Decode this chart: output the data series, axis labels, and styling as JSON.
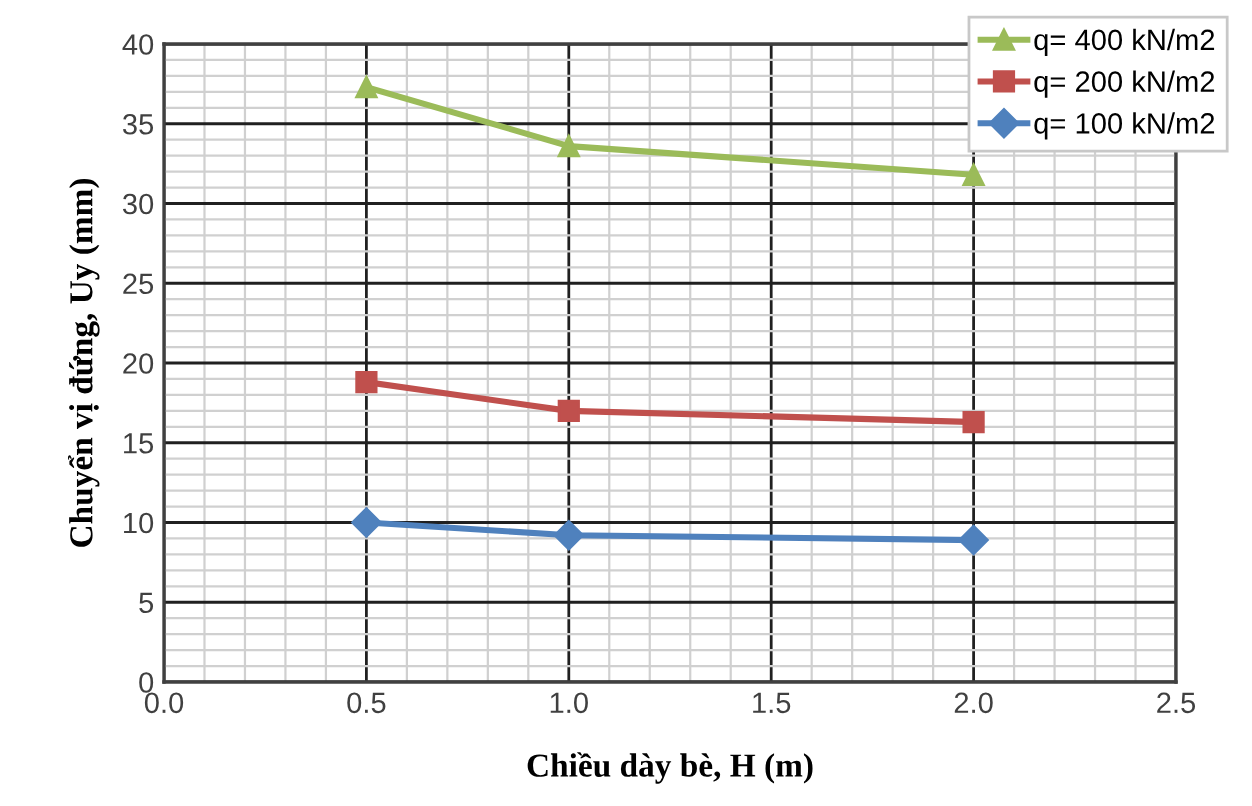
{
  "chart_data": {
    "type": "line",
    "xlabel": "Chiều dày bè, H (m)",
    "ylabel": "Chuyển vị đứng, Uy (mm)",
    "x": [
      0.5,
      1.0,
      2.0
    ],
    "series": [
      {
        "name": "q= 400 kN/m2",
        "color": "#9bbb59",
        "marker": "triangle",
        "values": [
          37.3,
          33.6,
          31.8
        ]
      },
      {
        "name": "q= 200 kN/m2",
        "color": "#c0504d",
        "marker": "square",
        "values": [
          18.8,
          17.0,
          16.3
        ]
      },
      {
        "name": "q= 100 kN/m2",
        "color": "#4f81bd",
        "marker": "diamond",
        "values": [
          10.0,
          9.2,
          8.9
        ]
      }
    ],
    "xlim": [
      0,
      2.5
    ],
    "xticks": [
      {
        "value": 0,
        "label": "0.0"
      },
      {
        "value": 0.5,
        "label": "0.5"
      },
      {
        "value": 1.0,
        "label": "1.0"
      },
      {
        "value": 1.5,
        "label": "1.5"
      },
      {
        "value": 2.0,
        "label": "2.0"
      },
      {
        "value": 2.5,
        "label": "2.5"
      }
    ],
    "ylim": [
      0,
      40
    ],
    "yticks": [
      0,
      5,
      10,
      15,
      20,
      25,
      30,
      35,
      40
    ],
    "grid": true,
    "legend": "top right",
    "line_style": "solid"
  }
}
